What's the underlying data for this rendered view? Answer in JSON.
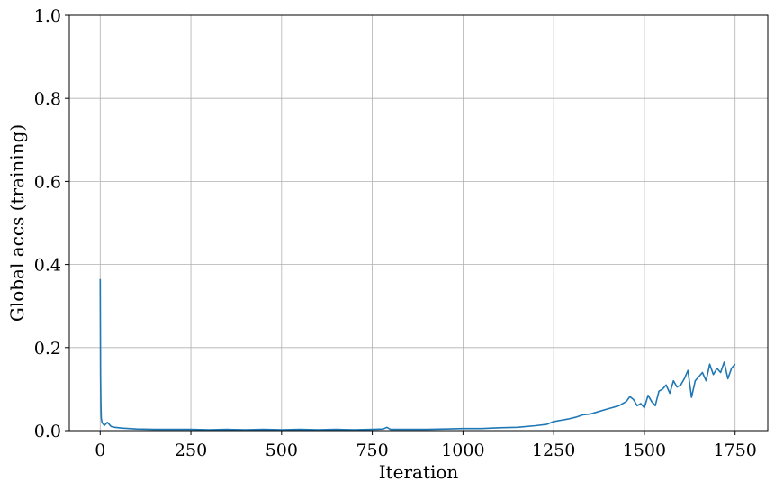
{
  "chart_data": {
    "type": "line",
    "title": "",
    "xlabel": "Iteration",
    "ylabel": "Global accs (training)",
    "xlim": [
      -85,
      1840
    ],
    "ylim": [
      0,
      1
    ],
    "xticks": [
      0,
      250,
      500,
      750,
      1000,
      1250,
      1500,
      1750
    ],
    "xtick_labels": [
      "0",
      "250",
      "500",
      "750",
      "1000",
      "1250",
      "1500",
      "1750"
    ],
    "yticks": [
      0,
      0.2,
      0.4,
      0.6,
      0.8,
      1.0
    ],
    "ytick_labels": [
      "0.0",
      "0.2",
      "0.4",
      "0.6",
      "0.8",
      "1.0"
    ],
    "grid": true,
    "legend": "none",
    "series": [
      {
        "color": "#1f77b4",
        "x": [
          0,
          1,
          2,
          3,
          5,
          8,
          12,
          20,
          30,
          40,
          60,
          80,
          100,
          150,
          200,
          250,
          300,
          350,
          400,
          450,
          500,
          550,
          600,
          650,
          700,
          750,
          780,
          790,
          800,
          850,
          900,
          950,
          1000,
          1050,
          1100,
          1150,
          1200,
          1230,
          1250,
          1270,
          1290,
          1310,
          1330,
          1350,
          1370,
          1390,
          1410,
          1430,
          1450,
          1460,
          1470,
          1480,
          1490,
          1500,
          1510,
          1520,
          1530,
          1540,
          1550,
          1560,
          1570,
          1580,
          1590,
          1600,
          1610,
          1620,
          1630,
          1640,
          1650,
          1660,
          1670,
          1680,
          1690,
          1700,
          1710,
          1720,
          1730,
          1740,
          1750
        ],
        "y": [
          0.365,
          0.13,
          0.06,
          0.03,
          0.02,
          0.016,
          0.013,
          0.02,
          0.01,
          0.008,
          0.006,
          0.005,
          0.004,
          0.003,
          0.003,
          0.003,
          0.002,
          0.003,
          0.002,
          0.003,
          0.002,
          0.003,
          0.002,
          0.003,
          0.002,
          0.003,
          0.004,
          0.008,
          0.003,
          0.003,
          0.003,
          0.004,
          0.005,
          0.005,
          0.007,
          0.008,
          0.012,
          0.015,
          0.022,
          0.025,
          0.028,
          0.032,
          0.038,
          0.04,
          0.045,
          0.05,
          0.055,
          0.06,
          0.07,
          0.082,
          0.075,
          0.06,
          0.065,
          0.055,
          0.085,
          0.07,
          0.06,
          0.095,
          0.1,
          0.11,
          0.09,
          0.12,
          0.105,
          0.11,
          0.125,
          0.145,
          0.08,
          0.12,
          0.13,
          0.14,
          0.12,
          0.16,
          0.135,
          0.15,
          0.14,
          0.165,
          0.125,
          0.15,
          0.16
        ]
      }
    ]
  }
}
